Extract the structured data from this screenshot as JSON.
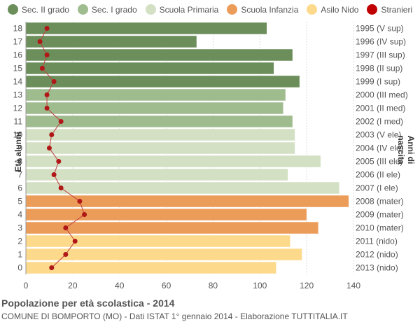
{
  "legend": [
    {
      "name": "Sec. II grado",
      "color": "#6b8e5a"
    },
    {
      "name": "Sec. I grado",
      "color": "#9fbc8f"
    },
    {
      "name": "Scuola Primaria",
      "color": "#d3e0c3"
    },
    {
      "name": "Scuola Infanzia",
      "color": "#ec9c59"
    },
    {
      "name": "Asilo Nido",
      "color": "#fdd98b"
    },
    {
      "name": "Stranieri",
      "color": "#c00000"
    }
  ],
  "ylabel_left": "Età alunni",
  "ylabel_right": "Anni di nascita",
  "footer": {
    "title": "Popolazione per età scolastica - 2014",
    "subtitle": "COMUNE DI BOMPORTO (MO) - Dati ISTAT 1° gennaio 2014 - Elaborazione TUTTITALIA.IT"
  },
  "chart_data": {
    "type": "bar",
    "orientation": "horizontal",
    "x_ticks": [
      0,
      20,
      40,
      60,
      80,
      100,
      120,
      140
    ],
    "xlim": [
      0,
      140
    ],
    "rows": [
      {
        "age": "18",
        "year": "1995 (V sup)",
        "value": 103,
        "stranieri": 9,
        "group": 0
      },
      {
        "age": "17",
        "year": "1996 (IV sup)",
        "value": 73,
        "stranieri": 6,
        "group": 0
      },
      {
        "age": "16",
        "year": "1997 (III sup)",
        "value": 114,
        "stranieri": 9,
        "group": 0
      },
      {
        "age": "15",
        "year": "1998 (II sup)",
        "value": 106,
        "stranieri": 7,
        "group": 0
      },
      {
        "age": "14",
        "year": "1999 (I sup)",
        "value": 117,
        "stranieri": 12,
        "group": 0
      },
      {
        "age": "13",
        "year": "2000 (III med)",
        "value": 111,
        "stranieri": 9,
        "group": 1
      },
      {
        "age": "12",
        "year": "2001 (II med)",
        "value": 110,
        "stranieri": 9,
        "group": 1
      },
      {
        "age": "11",
        "year": "2002 (I med)",
        "value": 114,
        "stranieri": 15,
        "group": 1
      },
      {
        "age": "10",
        "year": "2003 (V ele)",
        "value": 115,
        "stranieri": 11,
        "group": 2
      },
      {
        "age": "9",
        "year": "2004 (IV ele)",
        "value": 115,
        "stranieri": 10,
        "group": 2
      },
      {
        "age": "8",
        "year": "2005 (III ele)",
        "value": 126,
        "stranieri": 14,
        "group": 2
      },
      {
        "age": "7",
        "year": "2006 (II ele)",
        "value": 112,
        "stranieri": 12,
        "group": 2
      },
      {
        "age": "6",
        "year": "2007 (I ele)",
        "value": 134,
        "stranieri": 15,
        "group": 2
      },
      {
        "age": "5",
        "year": "2008 (mater)",
        "value": 138,
        "stranieri": 23,
        "group": 3
      },
      {
        "age": "4",
        "year": "2009 (mater)",
        "value": 120,
        "stranieri": 25,
        "group": 3
      },
      {
        "age": "3",
        "year": "2010 (mater)",
        "value": 125,
        "stranieri": 17,
        "group": 3
      },
      {
        "age": "2",
        "year": "2011 (nido)",
        "value": 113,
        "stranieri": 21,
        "group": 4
      },
      {
        "age": "1",
        "year": "2012 (nido)",
        "value": 118,
        "stranieri": 17,
        "group": 4
      },
      {
        "age": "0",
        "year": "2013 (nido)",
        "value": 107,
        "stranieri": 11,
        "group": 4
      }
    ]
  }
}
